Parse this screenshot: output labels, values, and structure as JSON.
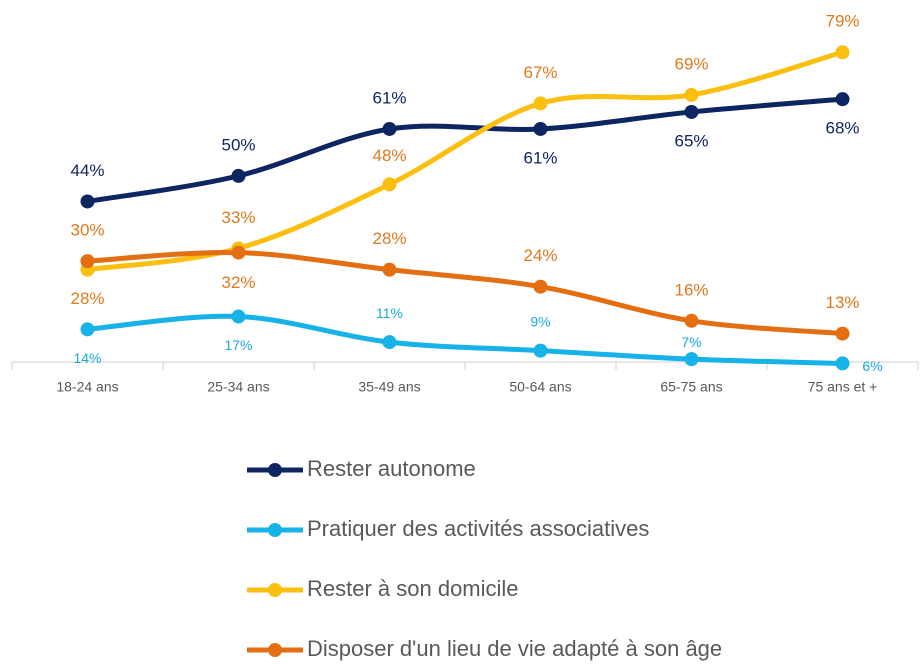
{
  "chart_data": {
    "type": "line",
    "categories": [
      "18-24 ans",
      "25-34 ans",
      "35-49 ans",
      "50-64 ans",
      "65-75 ans",
      "75 ans et +"
    ],
    "ylim": [
      0,
      80
    ],
    "series": [
      {
        "name": "Rester autonome",
        "color": "#0d2560",
        "label_color": "#0d2560",
        "values": [
          44,
          50,
          61,
          61,
          65,
          68
        ],
        "value_labels": [
          "44%",
          "50%",
          "61%",
          "61%",
          "65%",
          "68%"
        ]
      },
      {
        "name": "Pratiquer des activités associatives",
        "color": "#17b2e8",
        "label_color": "#1aa8e0",
        "values": [
          14,
          17,
          11,
          9,
          7,
          6
        ],
        "value_labels": [
          "14%",
          "17%",
          "11%",
          "9%",
          "7%",
          "6%"
        ]
      },
      {
        "name": "Rester à son domicile",
        "color": "#fbbf0f",
        "label_color": "#e0781c",
        "values": [
          28,
          33,
          48,
          67,
          69,
          79
        ],
        "value_labels": [
          "28%",
          "33%",
          "48%",
          "67%",
          "69%",
          "79%"
        ]
      },
      {
        "name": "Disposer d'un lieu de vie adapté à son âge",
        "color": "#e36f12",
        "label_color": "#e0781c",
        "values": [
          30,
          32,
          28,
          24,
          16,
          13
        ],
        "value_labels": [
          "30%",
          "32%",
          "28%",
          "24%",
          "16%",
          "13%"
        ]
      }
    ]
  }
}
